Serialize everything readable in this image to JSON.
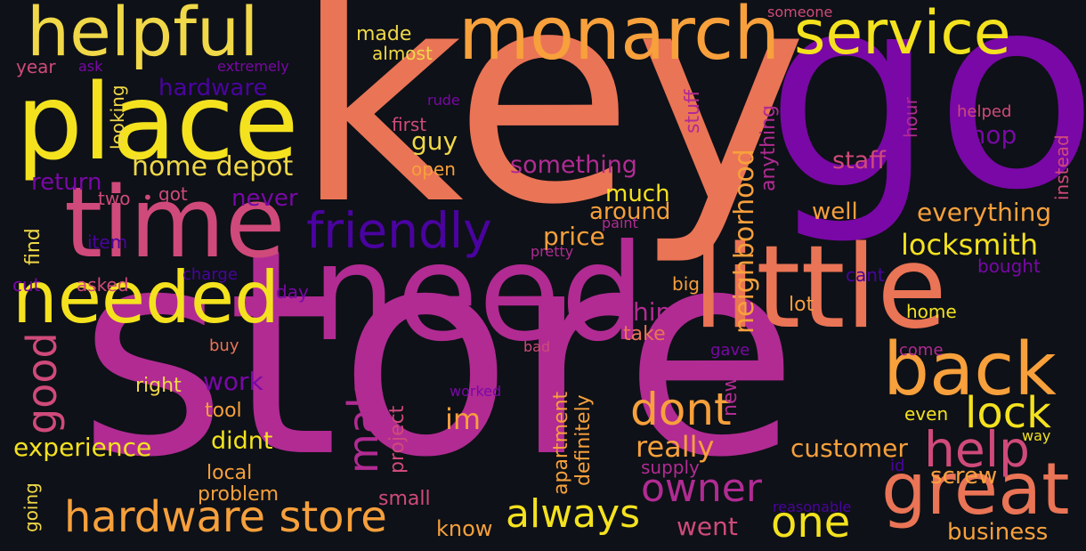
{
  "palette": {
    "background": "#0e1117",
    "yellow": "#f4e21f",
    "light_yellow": "#f0d848",
    "orange": "#f7a03c",
    "salmon": "#ea7456",
    "pink": "#cf4a7a",
    "magenta": "#b12b93",
    "purple": "#7908a6",
    "indigo": "#4a03a0"
  },
  "words": {
    "store": "store",
    "key": "key",
    "go": "go",
    "need": "need",
    "time": "time",
    "little": "little",
    "place": "place",
    "monarch": "monarch",
    "helpful": "helpful",
    "service": "service",
    "needed": "needed",
    "friendly": "friendly",
    "back": "back",
    "great": "great",
    "hardware_store": "hardware store",
    "help": "help",
    "lock": "lock",
    "dont": "dont",
    "owner": "owner",
    "always": "always",
    "one": "one",
    "good": "good",
    "make": "make",
    "locksmith": "locksmith",
    "everything": "everything",
    "neighborhood": "neighborhood",
    "home_depot": "home depot",
    "shop": "shop",
    "staff": "staff",
    "guy": "guy",
    "something": "something",
    "price": "price",
    "really": "really",
    "customer": "customer",
    "experience": "experience",
    "im": "im",
    "thing": "thing",
    "work": "work",
    "didnt": "didnt",
    "hardware": "hardware",
    "return": "return",
    "never": "never",
    "much": "much",
    "around": "around",
    "well": "well",
    "project": "project",
    "apartment": "apartment",
    "definitely": "definitely",
    "new": "new",
    "screw": "screw",
    "business": "business",
    "went": "went",
    "know": "know",
    "small": "small",
    "problem": "problem",
    "local": "local",
    "tool": "tool",
    "right": "right",
    "even": "even",
    "home": "home",
    "lot": "lot",
    "take": "take",
    "made": "made",
    "almost": "almost",
    "year": "year",
    "looking": "looking",
    "first": "first",
    "open": "open",
    "stuff": "stuff",
    "anything": "anything",
    "hour": "hour",
    "instead": "instead",
    "helped": "helped",
    "bought": "bought",
    "cant": "cant",
    "big": "big",
    "find": "find",
    "item": "item",
    "two": "two",
    "got": "got",
    "cut": "cut",
    "asked": "asked",
    "charge": "charge",
    "day": "day",
    "buy": "buy",
    "bad": "bad",
    "gave": "gave",
    "come": "come",
    "way": "way",
    "id": "id",
    "supply": "supply",
    "going": "going",
    "reasonable": "reasonable",
    "worked": "worked",
    "paint": "paint",
    "pretty": "pretty",
    "rude": "rude",
    "ask": "ask",
    "extremely": "extremely",
    "someone": "someone"
  }
}
